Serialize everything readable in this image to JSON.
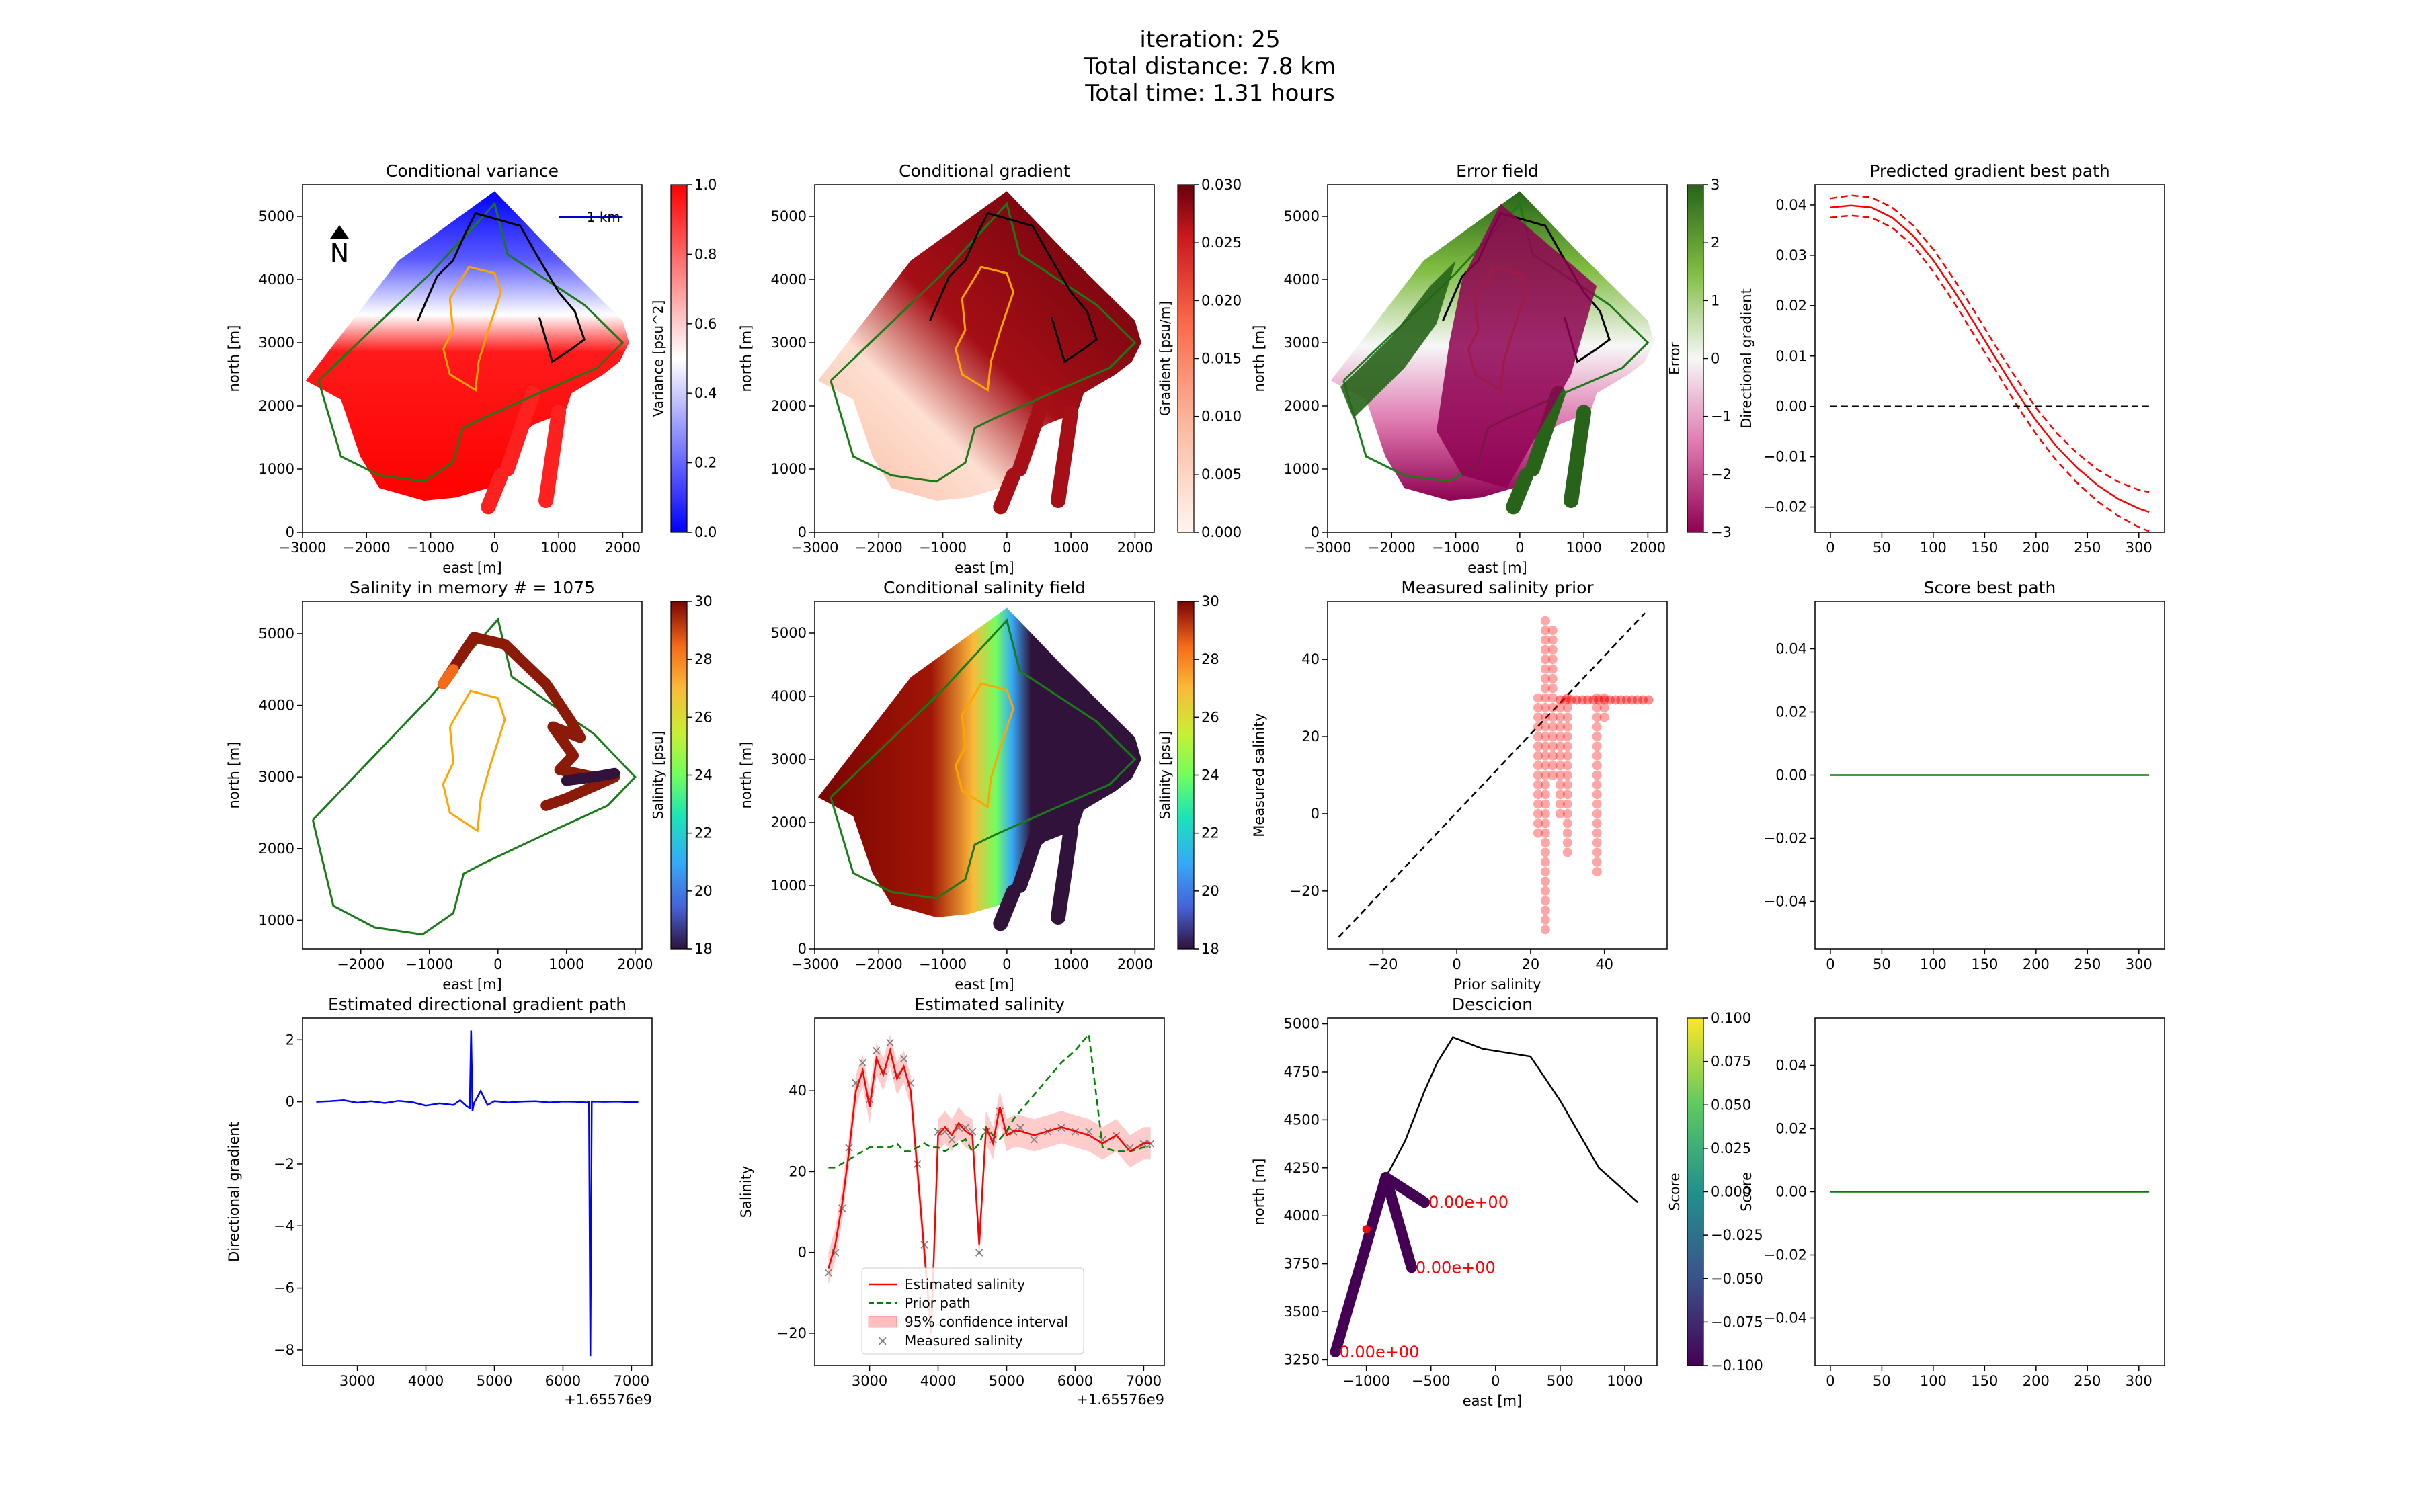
{
  "suptitle": [
    "iteration: 25",
    "Total distance: 7.8 km",
    "Total time: 1.31 hours"
  ],
  "chart_data": [
    {
      "id": "p1",
      "type": "heatmap",
      "title": "Conditional variance",
      "xlabel": "east [m]",
      "ylabel": "north [m]",
      "xlim": [
        -3000,
        2300
      ],
      "ylim": [
        0,
        5500
      ],
      "xticks": [
        -3000,
        -2000,
        -1000,
        0,
        1000,
        2000
      ],
      "yticks": [
        0,
        1000,
        2000,
        3000,
        4000,
        5000
      ],
      "colorbar": {
        "label": "Variance [psu^2]",
        "range": [
          0.0,
          1.0
        ],
        "ticks": [
          "0.0",
          "0.2",
          "0.4",
          "0.6",
          "0.8",
          "1.0"
        ],
        "cmap": "bwr"
      },
      "annotations": {
        "north_arrow": "N",
        "scale_bar": "1 km"
      }
    },
    {
      "id": "p2",
      "type": "heatmap",
      "title": "Conditional gradient",
      "xlabel": "east [m]",
      "ylabel": "north [m]",
      "xlim": [
        -3000,
        2300
      ],
      "ylim": [
        0,
        5500
      ],
      "xticks": [
        -3000,
        -2000,
        -1000,
        0,
        1000,
        2000
      ],
      "yticks": [
        0,
        1000,
        2000,
        3000,
        4000,
        5000
      ],
      "colorbar": {
        "label": "Gradient [psu/m]",
        "range": [
          0.0,
          0.03
        ],
        "ticks": [
          "0.000",
          "0.005",
          "0.010",
          "0.015",
          "0.020",
          "0.025",
          "0.030"
        ],
        "cmap": "Reds"
      }
    },
    {
      "id": "p3",
      "type": "heatmap",
      "title": "Error field",
      "xlabel": "east [m]",
      "ylabel": "north [m]",
      "xlim": [
        -3000,
        2300
      ],
      "ylim": [
        0,
        5500
      ],
      "xticks": [
        -3000,
        -2000,
        -1000,
        0,
        1000,
        2000
      ],
      "yticks": [
        0,
        1000,
        2000,
        3000,
        4000,
        5000
      ],
      "colorbar": {
        "label": "Error",
        "range": [
          -3,
          3
        ],
        "ticks": [
          "−3",
          "−2",
          "−1",
          "0",
          "1",
          "2",
          "3"
        ],
        "cmap": "PiYG"
      }
    },
    {
      "id": "p4",
      "type": "line",
      "title": "Predicted gradient best path",
      "xlabel": "",
      "ylabel": "Directional gradient",
      "xlim": [
        -15,
        325
      ],
      "ylim": [
        -0.025,
        0.044
      ],
      "xticks": [
        0,
        50,
        100,
        150,
        200,
        250,
        300
      ],
      "yticks": [
        -0.02,
        -0.01,
        0.0,
        0.01,
        0.02,
        0.03,
        0.04
      ],
      "ytick_labels": [
        "−0.02",
        "−0.01",
        "0.00",
        "0.01",
        "0.02",
        "0.03",
        "0.04"
      ],
      "x": [
        0,
        20,
        40,
        60,
        80,
        100,
        120,
        140,
        160,
        180,
        200,
        220,
        240,
        260,
        280,
        300,
        310
      ],
      "series": [
        {
          "role": "mean",
          "style": "solid",
          "color": "#ff0000",
          "values": [
            0.0395,
            0.0399,
            0.0395,
            0.0375,
            0.034,
            0.029,
            0.023,
            0.0165,
            0.0098,
            0.0032,
            -0.0028,
            -0.008,
            -0.0122,
            -0.0157,
            -0.0184,
            -0.0203,
            -0.021
          ]
        },
        {
          "role": "upper",
          "style": "dashed",
          "color": "#ff0000",
          "values": [
            0.0413,
            0.0419,
            0.0415,
            0.0395,
            0.036,
            0.0312,
            0.0253,
            0.0189,
            0.0122,
            0.0058,
            -0.0003,
            -0.0053,
            -0.0093,
            -0.0126,
            -0.015,
            -0.0166,
            -0.017
          ]
        },
        {
          "role": "lower",
          "style": "dashed",
          "color": "#ff0000",
          "values": [
            0.0375,
            0.0379,
            0.0375,
            0.0355,
            0.032,
            0.0268,
            0.0207,
            0.0141,
            0.0074,
            0.0006,
            -0.0055,
            -0.0108,
            -0.0152,
            -0.0189,
            -0.0218,
            -0.024,
            -0.0248
          ]
        },
        {
          "role": "zero",
          "style": "dashed",
          "color": "#000000",
          "values": [
            0,
            0,
            0,
            0,
            0,
            0,
            0,
            0,
            0,
            0,
            0,
            0,
            0,
            0,
            0,
            0,
            0
          ]
        }
      ]
    },
    {
      "id": "p5",
      "type": "scatter",
      "title": "Salinity in memory # = 1075",
      "xlabel": "east [m]",
      "ylabel": "north [m]",
      "xlim": [
        -2850,
        2100
      ],
      "ylim": [
        600,
        5450
      ],
      "xticks": [
        -2000,
        -1000,
        0,
        1000,
        2000
      ],
      "yticks": [
        1000,
        2000,
        3000,
        4000,
        5000
      ],
      "colorbar": {
        "label": "Salinity [psu]",
        "range": [
          18,
          30
        ],
        "ticks": [
          "18",
          "20",
          "22",
          "24",
          "26",
          "28",
          "30"
        ],
        "cmap": "turbo"
      }
    },
    {
      "id": "p6",
      "type": "heatmap",
      "title": "Conditional salinity field",
      "xlabel": "east [m]",
      "ylabel": "north [m]",
      "xlim": [
        -3000,
        2300
      ],
      "ylim": [
        0,
        5500
      ],
      "xticks": [
        -3000,
        -2000,
        -1000,
        0,
        1000,
        2000
      ],
      "yticks": [
        0,
        1000,
        2000,
        3000,
        4000,
        5000
      ],
      "colorbar": {
        "label": "Salinity [psu]",
        "range": [
          18,
          30
        ],
        "ticks": [
          "18",
          "20",
          "22",
          "24",
          "26",
          "28",
          "30"
        ],
        "cmap": "turbo"
      }
    },
    {
      "id": "p7",
      "type": "scatter",
      "title": "Measured salinity prior",
      "xlabel": "Prior salinity",
      "ylabel": "Measured salinity",
      "xlim": [
        -35,
        57
      ],
      "ylim": [
        -35,
        55
      ],
      "xticks": [
        -20,
        0,
        20,
        40
      ],
      "yticks": [
        -20,
        0,
        20,
        40
      ],
      "xtick_labels": [
        "−20",
        "0",
        "20",
        "40"
      ],
      "ytick_labels": [
        "−20",
        "0",
        "20",
        "40"
      ],
      "reference_line": {
        "from": [
          -32,
          -32
        ],
        "to": [
          51,
          52
        ]
      }
    },
    {
      "id": "p8",
      "type": "line",
      "title": "Score best path",
      "xlabel": "",
      "ylabel": "",
      "xlim": [
        -15,
        325
      ],
      "ylim": [
        -0.055,
        0.055
      ],
      "xticks": [
        0,
        50,
        100,
        150,
        200,
        250,
        300
      ],
      "yticks": [
        -0.04,
        -0.02,
        0.0,
        0.02,
        0.04
      ],
      "ytick_labels": [
        "−0.04",
        "−0.02",
        "0.00",
        "0.02",
        "0.04"
      ],
      "x": [
        0,
        310
      ],
      "series": [
        {
          "color": "#008000",
          "values": [
            0,
            0
          ]
        }
      ]
    },
    {
      "id": "p9",
      "type": "line",
      "title": "Estimated directional gradient path",
      "xlabel": "",
      "ylabel": "Directional gradient",
      "xlim": [
        2200,
        7300
      ],
      "ylim": [
        -8.5,
        2.7
      ],
      "xticks": [
        3000,
        4000,
        5000,
        6000,
        7000
      ],
      "yticks": [
        -8,
        -6,
        -4,
        -2,
        0,
        2
      ],
      "ytick_labels": [
        "−8",
        "−6",
        "−4",
        "−2",
        "0",
        "2"
      ],
      "offset_text": "+1.65576e9",
      "x": [
        2400,
        2600,
        2800,
        3000,
        3200,
        3400,
        3600,
        3800,
        4000,
        4200,
        4400,
        4500,
        4600,
        4640,
        4660,
        4680,
        4700,
        4800,
        4900,
        5000,
        5100,
        5200,
        5400,
        5600,
        5800,
        6000,
        6200,
        6350,
        6380,
        6400,
        6420,
        6600,
        6800,
        7000,
        7100
      ],
      "series": [
        {
          "color": "#0000ff",
          "values": [
            0.0,
            0.02,
            0.05,
            -0.03,
            0.02,
            -0.04,
            0.03,
            -0.01,
            -0.12,
            -0.05,
            -0.1,
            0.05,
            -0.15,
            -0.2,
            2.3,
            -0.3,
            -0.05,
            0.35,
            -0.1,
            0.02,
            0.0,
            -0.02,
            0.01,
            0.02,
            -0.02,
            0.01,
            0.0,
            -0.02,
            0.0,
            -8.2,
            0.01,
            0.0,
            0.01,
            -0.01,
            0.0
          ]
        }
      ]
    },
    {
      "id": "p10",
      "type": "line",
      "title": "Estimated salinity",
      "xlabel": "",
      "ylabel": "Salinity",
      "xlim": [
        2200,
        7300
      ],
      "ylim": [
        -28,
        58
      ],
      "xticks": [
        3000,
        4000,
        5000,
        6000,
        7000
      ],
      "yticks": [
        -20,
        0,
        20,
        40
      ],
      "ytick_labels": [
        "−20",
        "0",
        "20",
        "40"
      ],
      "offset_text": "+1.65576e9",
      "legend": {
        "placement": "lower center",
        "entries": [
          "Estimated salinity",
          "Prior path",
          "95% confidence interval",
          "Measured salinity"
        ]
      },
      "x": [
        2400,
        2500,
        2600,
        2700,
        2800,
        2900,
        3000,
        3100,
        3200,
        3300,
        3400,
        3500,
        3600,
        3700,
        3800,
        3900,
        4000,
        4100,
        4200,
        4300,
        4400,
        4500,
        4600,
        4700,
        4800,
        4900,
        5000,
        5100,
        5200,
        5400,
        5600,
        5800,
        6000,
        6200,
        6400,
        6600,
        6800,
        7000,
        7100
      ],
      "series": [
        {
          "name": "Estimated salinity",
          "color": "#ff0000",
          "values": [
            -4,
            2,
            12,
            25,
            40,
            45,
            36,
            48,
            44,
            50,
            43,
            46,
            40,
            20,
            0,
            -20,
            29,
            31,
            29,
            32,
            30,
            29,
            2,
            31,
            27,
            36,
            29,
            30,
            30,
            29,
            30,
            31,
            30,
            29,
            27,
            29,
            25,
            27,
            27
          ]
        },
        {
          "name": "Prior path",
          "color": "#008000",
          "values": [
            21,
            21,
            22,
            23,
            24,
            25,
            26,
            26,
            26,
            26,
            27,
            25,
            25,
            26,
            27,
            26,
            26,
            25,
            26,
            27,
            28,
            25,
            27,
            31,
            29,
            28,
            30,
            33,
            35,
            39,
            43,
            47,
            50,
            54,
            26,
            25,
            25,
            26,
            26
          ]
        },
        {
          "name": "Measured salinity",
          "color": "#808080",
          "values": [
            -5,
            0,
            11,
            26,
            42,
            47,
            38,
            50,
            45,
            52,
            44,
            48,
            42,
            22,
            2,
            -22,
            30,
            30,
            28,
            31,
            31,
            30,
            0,
            30,
            28,
            35,
            30,
            30,
            31,
            28,
            30,
            31,
            30,
            30,
            28,
            29,
            26,
            27,
            27
          ]
        }
      ]
    },
    {
      "id": "p11",
      "type": "line",
      "title": "Descicion",
      "xlabel": "east [m]",
      "ylabel": "north [m]",
      "xlim": [
        -1300,
        1250
      ],
      "ylim": [
        3220,
        5030
      ],
      "xticks": [
        -1000,
        -500,
        0,
        500,
        1000
      ],
      "yticks": [
        3250,
        3500,
        3750,
        4000,
        4250,
        4500,
        4750,
        5000
      ],
      "xtick_labels": [
        "−1000",
        "−500",
        "0",
        "500",
        "1000"
      ],
      "colorbar": {
        "label": "Score",
        "range": [
          -0.1,
          0.1
        ],
        "ticks": [
          "−0.100",
          "−0.075",
          "−0.050",
          "−0.025",
          "0.000",
          "0.025",
          "0.050",
          "0.075",
          "0.100"
        ],
        "cmap": "viridis"
      },
      "path_x": [
        -850,
        -700,
        -550,
        -450,
        -330,
        -100,
        270,
        500,
        800,
        1100
      ],
      "path_y": [
        4200,
        4390,
        4650,
        4800,
        4930,
        4870,
        4830,
        4600,
        4250,
        4070
      ],
      "branches": [
        {
          "from": [
            -1240,
            3290
          ],
          "to": [
            -850,
            4200
          ],
          "label": "0.00e+00"
        },
        {
          "from": [
            -850,
            4200
          ],
          "to": [
            -550,
            4070
          ],
          "label": "0.00e+00"
        },
        {
          "from": [
            -850,
            4200
          ],
          "to": [
            -650,
            3730
          ],
          "label": "0.00e+00"
        }
      ]
    },
    {
      "id": "p12",
      "type": "line",
      "title": "",
      "xlabel": "",
      "ylabel": "Score",
      "xlim": [
        -15,
        325
      ],
      "ylim": [
        -0.055,
        0.055
      ],
      "xticks": [
        0,
        50,
        100,
        150,
        200,
        250,
        300
      ],
      "yticks": [
        -0.04,
        -0.02,
        0.0,
        0.02,
        0.04
      ],
      "ytick_labels": [
        "−0.04",
        "−0.02",
        "0.00",
        "0.02",
        "0.04"
      ],
      "x": [
        0,
        310
      ],
      "series": [
        {
          "color": "#008000",
          "values": [
            0,
            0
          ]
        }
      ]
    }
  ]
}
